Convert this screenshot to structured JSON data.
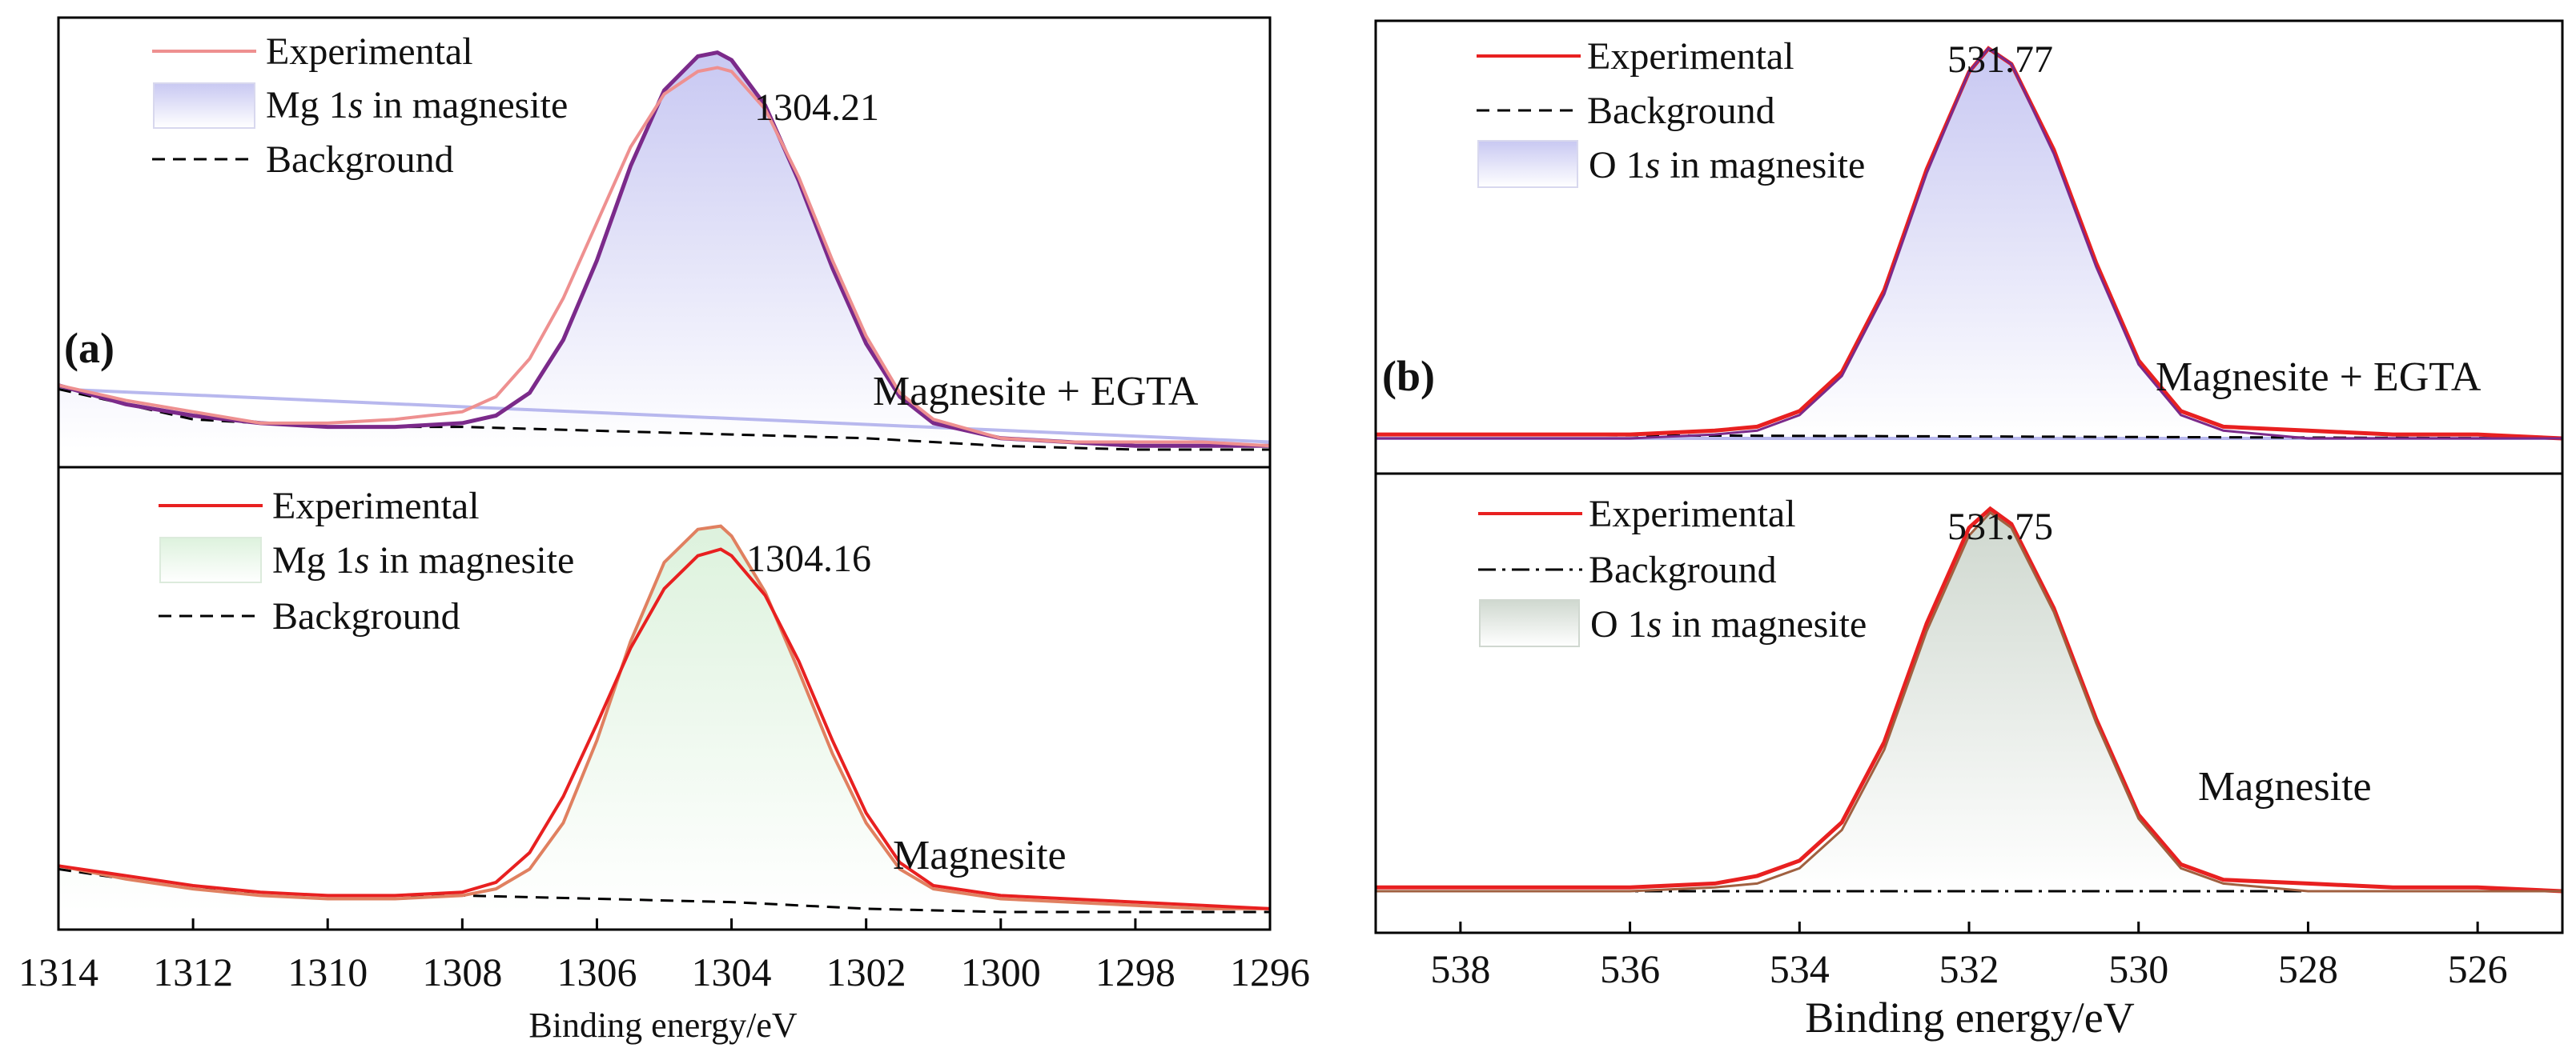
{
  "chart_data": [
    {
      "id": "a",
      "type": "line",
      "panel_label": "(a)",
      "xlabel": "Binding energy/eV",
      "xlim": [
        1314,
        1296
      ],
      "x_ticks": [
        1314,
        1312,
        1310,
        1308,
        1306,
        1304,
        1302,
        1300,
        1298,
        1296
      ],
      "x_tick_labels": [
        "1314",
        "1312",
        "1310",
        "1308",
        "1306",
        "1304",
        "1302",
        "1300",
        "1298",
        "1296"
      ],
      "y_axis_visible": false,
      "subplots": [
        {
          "id": "a-top",
          "name": "Magnesite + EGTA",
          "ylim": [
            0,
            1.1
          ],
          "peak_label": "1304.21",
          "legend": [
            {
              "label": "Experimental",
              "style": "line",
              "color": "#ee9090"
            },
            {
              "label": "Mg 1s in magnesite",
              "label_prefix": "Mg 1",
              "label_italic": "s",
              "label_suffix": " in magnesite",
              "style": "fill",
              "color": "#d9d9f7"
            },
            {
              "label": "Background",
              "style": "dashed",
              "color": "#000000"
            }
          ],
          "series": [
            {
              "name": "Experimental",
              "color": "#ee9090",
              "x": [
                1314,
                1313,
                1312,
                1311,
                1310,
                1309,
                1308,
                1307.5,
                1307,
                1306.5,
                1306,
                1305.5,
                1305,
                1304.5,
                1304.21,
                1304,
                1303.5,
                1303,
                1302.5,
                1302,
                1301.5,
                1301,
                1300,
                1299,
                1298,
                1297,
                1296
              ],
              "y": [
                0.17,
                0.13,
                0.1,
                0.07,
                0.07,
                0.08,
                0.1,
                0.14,
                0.24,
                0.4,
                0.6,
                0.8,
                0.94,
                1.0,
                1.01,
                1.0,
                0.9,
                0.72,
                0.5,
                0.3,
                0.15,
                0.08,
                0.03,
                0.02,
                0.02,
                0.02,
                0.01
              ]
            },
            {
              "name": "Mg 1s fit",
              "color": "#7b2a8a",
              "x": [
                1314,
                1313,
                1312,
                1311,
                1310,
                1309,
                1308,
                1307.5,
                1307,
                1306.5,
                1306,
                1305.5,
                1305,
                1304.5,
                1304.21,
                1304,
                1303.5,
                1303,
                1302.5,
                1302,
                1301.5,
                1301,
                1300,
                1299,
                1298,
                1297,
                1296
              ],
              "y": [
                0.17,
                0.12,
                0.09,
                0.07,
                0.06,
                0.06,
                0.07,
                0.09,
                0.15,
                0.29,
                0.5,
                0.75,
                0.95,
                1.04,
                1.05,
                1.03,
                0.91,
                0.71,
                0.48,
                0.28,
                0.14,
                0.07,
                0.03,
                0.02,
                0.01,
                0.01,
                0.01
              ]
            },
            {
              "name": "Background",
              "color": "#000000",
              "dash": true,
              "x": [
                1314,
                1312,
                1310,
                1308,
                1306,
                1304,
                1302,
                1300,
                1298,
                1296
              ],
              "y": [
                0.16,
                0.08,
                0.06,
                0.06,
                0.05,
                0.04,
                0.03,
                0.01,
                0.0,
                0.0
              ]
            },
            {
              "name": "Fitted background",
              "color": "#b8b8ee",
              "x": [
                1314,
                1296
              ],
              "y": [
                0.16,
                0.02
              ]
            }
          ]
        },
        {
          "id": "a-bottom",
          "name": "Magnesite",
          "ylim": [
            0,
            1.3
          ],
          "peak_label": "1304.16",
          "legend": [
            {
              "label": "Experimental",
              "style": "line",
              "color": "#e82020"
            },
            {
              "label": "Mg 1s in magnesite",
              "label_prefix": "Mg 1",
              "label_italic": "s",
              "label_suffix": " in magnesite",
              "style": "fill",
              "color": "#e6f6e6"
            },
            {
              "label": "Background",
              "style": "dashed",
              "color": "#000000"
            }
          ],
          "series": [
            {
              "name": "Experimental",
              "color": "#e82020",
              "x": [
                1314,
                1313,
                1312,
                1311,
                1310,
                1309,
                1308,
                1307.5,
                1307,
                1306.5,
                1306,
                1305.5,
                1305,
                1304.5,
                1304.16,
                1304,
                1303.5,
                1303,
                1302.5,
                1302,
                1301.5,
                1301,
                1300,
                1299,
                1298,
                1297,
                1296
              ],
              "y": [
                0.14,
                0.11,
                0.08,
                0.06,
                0.05,
                0.05,
                0.06,
                0.09,
                0.18,
                0.35,
                0.57,
                0.8,
                0.98,
                1.08,
                1.1,
                1.08,
                0.96,
                0.76,
                0.52,
                0.3,
                0.15,
                0.08,
                0.05,
                0.04,
                0.03,
                0.02,
                0.01
              ]
            },
            {
              "name": "Mg 1s fit",
              "color": "#e08060",
              "x": [
                1314,
                1313,
                1312,
                1311,
                1310,
                1309,
                1308,
                1307.5,
                1307,
                1306.5,
                1306,
                1305.5,
                1305,
                1304.5,
                1304.16,
                1304,
                1303.5,
                1303,
                1302.5,
                1302,
                1301.5,
                1301,
                1300,
                1299,
                1298,
                1297,
                1296
              ],
              "y": [
                0.14,
                0.1,
                0.07,
                0.05,
                0.04,
                0.04,
                0.05,
                0.07,
                0.13,
                0.27,
                0.52,
                0.82,
                1.06,
                1.16,
                1.17,
                1.14,
                0.97,
                0.73,
                0.48,
                0.27,
                0.13,
                0.07,
                0.04,
                0.03,
                0.02,
                0.01,
                0.01
              ]
            },
            {
              "name": "Background",
              "color": "#000000",
              "dash": true,
              "x": [
                1314,
                1312,
                1310,
                1308,
                1306,
                1304,
                1302,
                1300,
                1298,
                1296
              ],
              "y": [
                0.13,
                0.07,
                0.05,
                0.05,
                0.04,
                0.03,
                0.01,
                0.0,
                0.0,
                0.0
              ]
            }
          ]
        }
      ]
    },
    {
      "id": "b",
      "type": "line",
      "panel_label": "(b)",
      "xlabel": "Binding energy/eV",
      "xlim": [
        539,
        525
      ],
      "x_ticks": [
        538,
        536,
        534,
        532,
        530,
        528,
        526
      ],
      "x_tick_labels": [
        "538",
        "536",
        "534",
        "532",
        "530",
        "528",
        "526"
      ],
      "y_axis_visible": false,
      "subplots": [
        {
          "id": "b-top",
          "name": "Magnesite + EGTA",
          "ylim": [
            0,
            1.03
          ],
          "peak_label": "531.77",
          "legend": [
            {
              "label": "Experimental",
              "style": "line",
              "color": "#e82020"
            },
            {
              "label": "Background",
              "style": "dashed",
              "color": "#000000"
            },
            {
              "label": "O 1s in magnesite",
              "label_prefix": "O 1",
              "label_italic": "s",
              "label_suffix": " in magnesite",
              "style": "fill",
              "color": "#d9d9f7"
            }
          ],
          "series": [
            {
              "name": "Experimental",
              "color": "#e82020",
              "x": [
                539,
                538,
                537,
                536,
                535,
                534.5,
                534,
                533.5,
                533,
                532.5,
                532,
                531.77,
                531.5,
                531,
                530.5,
                530,
                529.5,
                529,
                528,
                527,
                526,
                525
              ],
              "y": [
                0.01,
                0.01,
                0.01,
                0.01,
                0.02,
                0.03,
                0.07,
                0.17,
                0.38,
                0.69,
                0.94,
                1.0,
                0.96,
                0.74,
                0.45,
                0.2,
                0.07,
                0.03,
                0.02,
                0.01,
                0.01,
                0.0
              ]
            },
            {
              "name": "O 1s fit",
              "color": "#7b2a8a",
              "x": [
                539,
                538,
                537,
                536,
                535,
                534.5,
                534,
                533.5,
                533,
                532.5,
                532,
                531.77,
                531.5,
                531,
                530.5,
                530,
                529.5,
                529,
                528,
                527,
                526,
                525
              ],
              "y": [
                0.0,
                0.0,
                0.0,
                0.0,
                0.01,
                0.02,
                0.06,
                0.16,
                0.37,
                0.68,
                0.94,
                1.0,
                0.96,
                0.73,
                0.44,
                0.19,
                0.06,
                0.02,
                0.0,
                0.0,
                0.0,
                0.0
              ]
            },
            {
              "name": "Background",
              "color": "#000000",
              "dash": true,
              "x": [
                539,
                525
              ],
              "y": [
                0.01,
                0.0
              ]
            },
            {
              "name": "Fitted background",
              "color": "#b8b8ee",
              "x": [
                539,
                525
              ],
              "y": [
                0.0,
                0.0
              ]
            }
          ]
        },
        {
          "id": "b-bottom",
          "name": "Magnesite",
          "ylim": [
            0,
            1.05
          ],
          "peak_label": "531.75",
          "legend": [
            {
              "label": "Experimental",
              "style": "line",
              "color": "#e82020"
            },
            {
              "label": "Background",
              "style": "dashdot",
              "color": "#000000"
            },
            {
              "label": "O 1s in magnesite",
              "label_prefix": "O 1",
              "label_italic": "s",
              "label_suffix": " in magnesite",
              "style": "fill",
              "color": "#dfe6df"
            }
          ],
          "series": [
            {
              "name": "Experimental",
              "color": "#e82020",
              "x": [
                539,
                538,
                537,
                536,
                535,
                534.5,
                534,
                533.5,
                533,
                532.5,
                532,
                531.75,
                531.5,
                531,
                530.5,
                530,
                529.5,
                529,
                528,
                527,
                526,
                525
              ],
              "y": [
                0.01,
                0.01,
                0.01,
                0.01,
                0.02,
                0.04,
                0.08,
                0.18,
                0.39,
                0.7,
                0.95,
                1.0,
                0.96,
                0.74,
                0.45,
                0.2,
                0.07,
                0.03,
                0.02,
                0.01,
                0.01,
                0.0
              ]
            },
            {
              "name": "O 1s fit",
              "color": "#a06040",
              "x": [
                539,
                538,
                537,
                536,
                535,
                534.5,
                534,
                533.5,
                533,
                532.5,
                532,
                531.75,
                531.5,
                531,
                530.5,
                530,
                529.5,
                529,
                528,
                527,
                526,
                525
              ],
              "y": [
                0.0,
                0.0,
                0.0,
                0.0,
                0.01,
                0.02,
                0.06,
                0.16,
                0.37,
                0.68,
                0.93,
                0.99,
                0.95,
                0.73,
                0.44,
                0.19,
                0.06,
                0.02,
                0.0,
                0.0,
                0.0,
                0.0
              ]
            },
            {
              "name": "Background",
              "color": "#000000",
              "dashdot": true,
              "x": [
                539,
                525
              ],
              "y": [
                0.0,
                0.0
              ]
            }
          ]
        }
      ]
    }
  ]
}
